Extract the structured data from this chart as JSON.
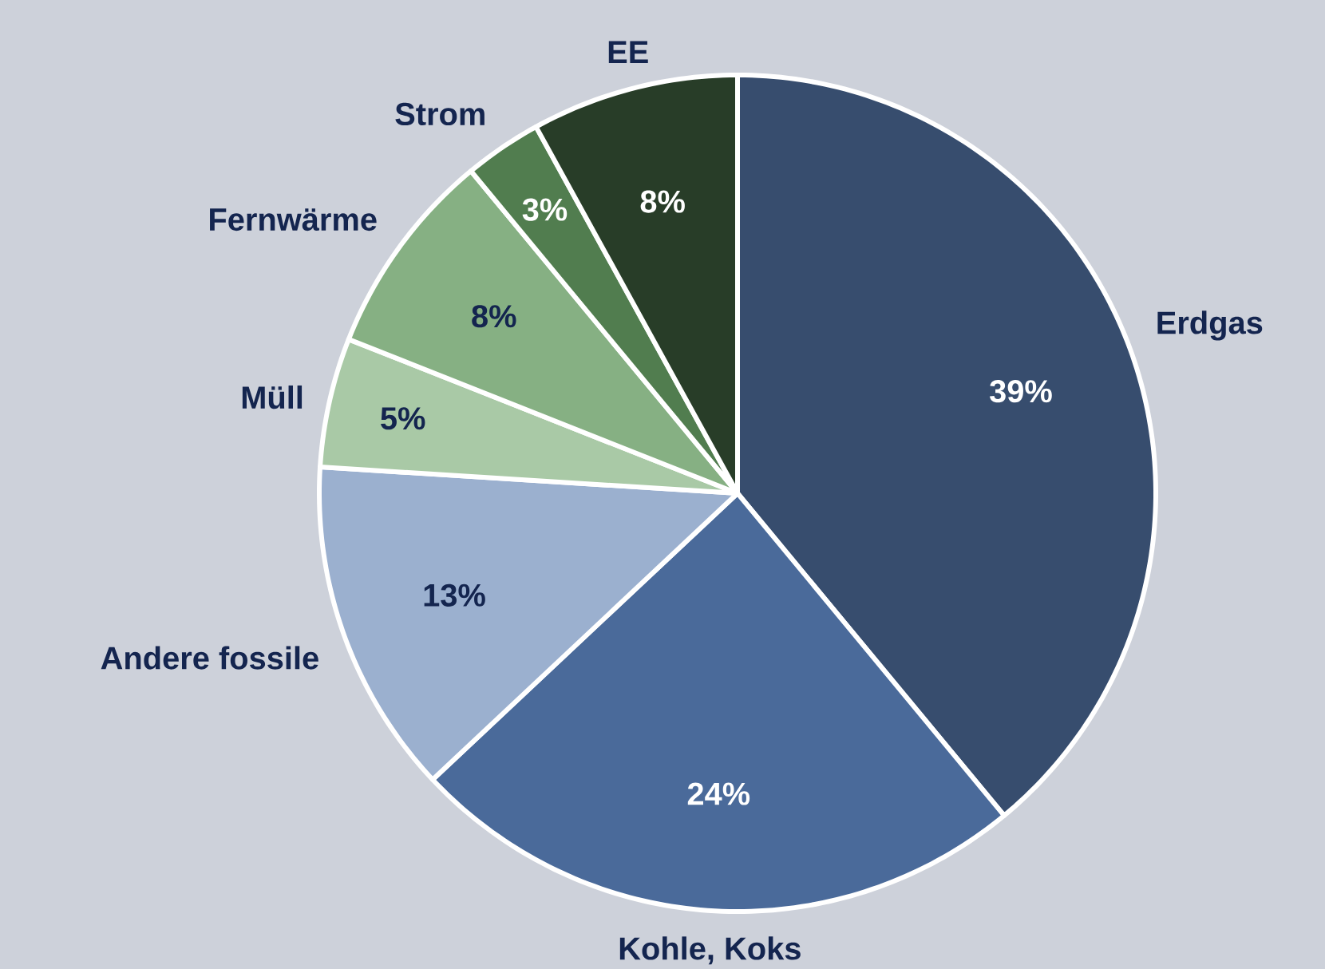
{
  "chart_data": {
    "type": "pie",
    "categories": [
      "Erdgas",
      "Kohle, Koks",
      "Andere fossile",
      "Müll",
      "Fernwärme",
      "Strom",
      "EE"
    ],
    "values": [
      39,
      24,
      13,
      5,
      8,
      3,
      8
    ],
    "value_labels": [
      "39%",
      "24%",
      "13%",
      "5%",
      "8%",
      "3%",
      "8%"
    ],
    "colors": [
      "#374d6e",
      "#4a6a9a",
      "#9bb0cf",
      "#a9c9a6",
      "#86b083",
      "#517d4f",
      "#283d28"
    ]
  }
}
